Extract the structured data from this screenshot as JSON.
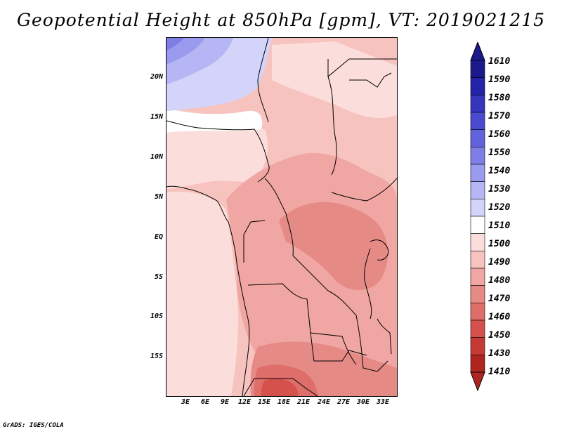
{
  "title": "Geopotential Height at 850hPa [gpm], VT: 2019021215",
  "footer": "GrADS: IGES/COLA",
  "map": {
    "region": "Central and Southern Africa",
    "variable": "Geopotential Height",
    "level": "850hPa",
    "units": "gpm",
    "valid_time": "2019021215",
    "lat_labels": [
      "20N",
      "15N",
      "10N",
      "5N",
      "EQ",
      "5S",
      "10S",
      "15S"
    ],
    "lon_labels": [
      "3E",
      "6E",
      "9E",
      "12E",
      "15E",
      "18E",
      "21E",
      "24E",
      "27E",
      "30E",
      "33E"
    ]
  },
  "colorbar": {
    "labels": [
      "1610",
      "1590",
      "1580",
      "1570",
      "1560",
      "1550",
      "1540",
      "1530",
      "1520",
      "1510",
      "1500",
      "1490",
      "1480",
      "1470",
      "1460",
      "1450",
      "1430",
      "1410"
    ],
    "colors": [
      "#1a1a8a",
      "#2424a8",
      "#3636bc",
      "#4a4ad0",
      "#6262dc",
      "#7e7ee6",
      "#9a9aee",
      "#b6b6f4",
      "#d4d4fa",
      "#ffffff",
      "#fbdedb",
      "#f7c3bf",
      "#f0a6a2",
      "#e68a86",
      "#de6e6a",
      "#d4514c",
      "#c63a36",
      "#b02420"
    ]
  }
}
